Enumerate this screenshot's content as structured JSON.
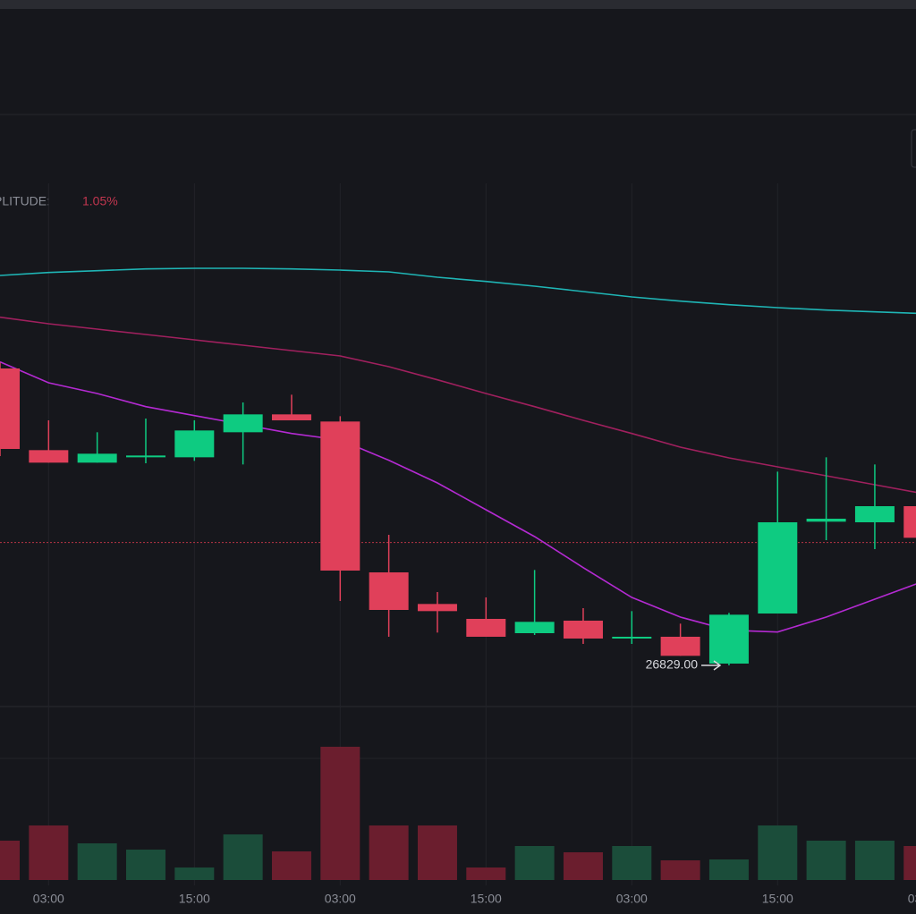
{
  "chart_data": {
    "type": "candlestick",
    "amplitude_label": "AMPLITUDE:",
    "amplitude_value": "1.05%",
    "categories": [
      null,
      "03:00",
      null,
      null,
      "15:00",
      null,
      null,
      "03:00",
      null,
      null,
      "15:00",
      null,
      null,
      "03:00",
      null,
      null,
      "15:00",
      null,
      null,
      "03:00"
    ],
    "open": [
      27327,
      27190,
      27169,
      27178,
      27178,
      27220,
      27250,
      27238,
      26985,
      26932,
      26907,
      26883,
      26904,
      26874,
      26877,
      26832,
      26916,
      27070,
      27069,
      27096
    ],
    "high": [
      27337,
      27240,
      27220,
      27243,
      27240,
      27270,
      27283,
      27247,
      27048,
      26952,
      26943,
      26989,
      26925,
      26920,
      26899,
      26917,
      27154,
      27178,
      27166,
      27105
    ],
    "low": [
      27180,
      27169,
      27169,
      27168,
      27172,
      27166,
      27240,
      26937,
      26877,
      26884,
      26877,
      26880,
      26865,
      26865,
      26845,
      26829,
      26916,
      27039,
      27024,
      27043
    ],
    "close": [
      27192,
      27169,
      27184,
      27181,
      27223,
      27250,
      27240,
      26988,
      26922,
      26920,
      26877,
      26902,
      26874,
      26877,
      26845,
      26914,
      27069,
      27075,
      27096,
      27043
    ],
    "up_color": "#0ecb81",
    "down_color": "#e0405a",
    "lines": [
      {
        "color": "#1fb5b5",
        "values": [
          27483,
          27488,
          27491,
          27494,
          27495,
          27495,
          27494,
          27492,
          27489,
          27480,
          27473,
          27465,
          27456,
          27447,
          27440,
          27434,
          27429,
          27425,
          27422,
          27419
        ]
      },
      {
        "color": "#a0205e",
        "values": [
          27413,
          27402,
          27393,
          27384,
          27375,
          27366,
          27357,
          27348,
          27330,
          27308,
          27285,
          27263,
          27240,
          27218,
          27195,
          27177,
          27162,
          27147,
          27132,
          27117
        ]
      },
      {
        "color": "#b42ad2",
        "values": [
          27338,
          27303,
          27285,
          27263,
          27248,
          27233,
          27218,
          27207,
          27173,
          27135,
          27090,
          27045,
          26993,
          26943,
          26910,
          26888,
          26885,
          26910,
          26940,
          26970
        ]
      }
    ],
    "price_line": 27035,
    "price_line_color": "#b83445",
    "low_marker": {
      "value": 26829,
      "label": "26829.00"
    },
    "ylim": [
      26760,
      27645
    ],
    "volume": [
      440,
      610,
      410,
      340,
      140,
      510,
      320,
      1490,
      610,
      610,
      140,
      380,
      310,
      380,
      220,
      230,
      610,
      440,
      440,
      380
    ],
    "volume_up_color": "#1b4d3a",
    "volume_down_color": "#6b1e2e",
    "vlim": [
      0,
      1940
    ]
  }
}
